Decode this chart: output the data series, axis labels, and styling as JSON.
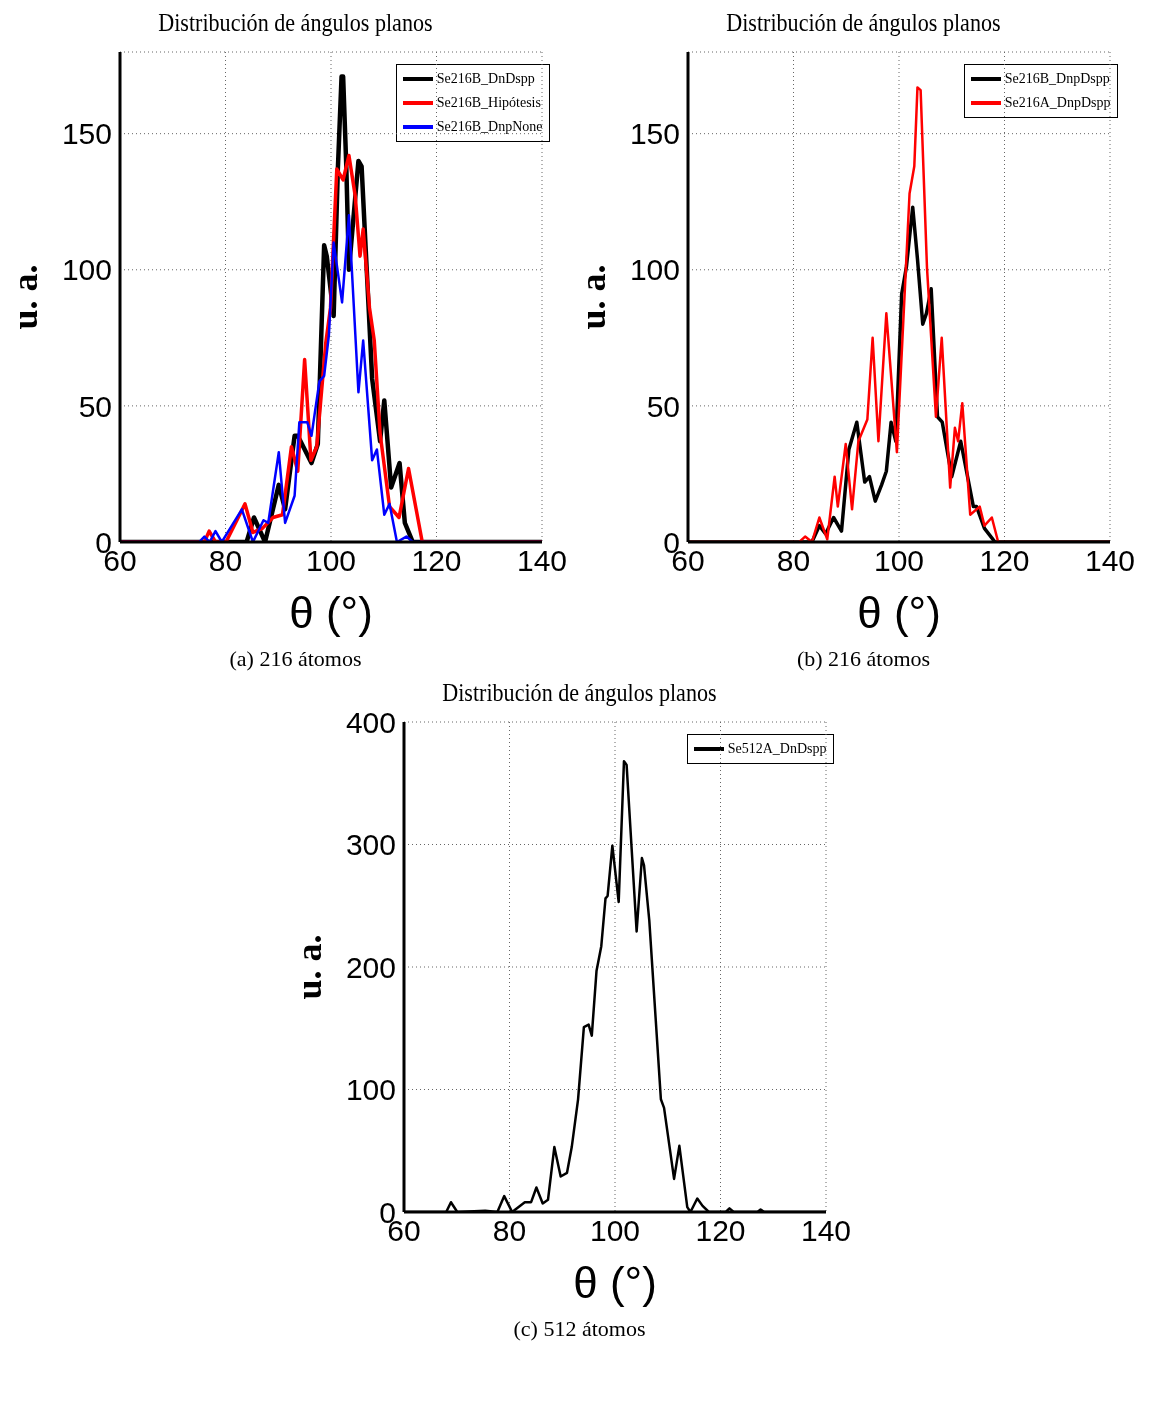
{
  "chart_data": [
    {
      "type": "line",
      "title": "Distribución de ángulos planos",
      "xlabel": "θ (°)",
      "ylabel": "u. a.",
      "xlim": [
        60,
        140
      ],
      "xticks": [
        60,
        80,
        100,
        120,
        140
      ],
      "ylim": [
        0,
        180
      ],
      "yticks": [
        0,
        50,
        100,
        150
      ],
      "grid": true,
      "legend": "top right",
      "marker": "none",
      "line_style": "solid",
      "annotations": [
        "(a) 216 átomos"
      ],
      "series": [
        {
          "name": "Se216B_DnDspp",
          "color": "#000000",
          "x": [
            60,
            84,
            85.4,
            87.5,
            90.1,
            91.3,
            93.1,
            93.7,
            96.3,
            97.5,
            98.7,
            99.2,
            100.5,
            101.3,
            102.0,
            102.3,
            102.9,
            103.4,
            105.2,
            105.8,
            107.8,
            109.3,
            110.1,
            111.4,
            113.0,
            114.0,
            115.5,
            140
          ],
          "values": [
            0,
            0,
            9,
            0,
            21,
            12,
            39,
            39,
            29,
            36,
            109,
            105,
            83,
            137,
            171,
            171,
            138,
            100,
            140,
            138,
            60,
            37,
            52,
            20,
            29,
            7,
            0,
            0
          ]
        },
        {
          "name": "Se216B_Hipótesis",
          "color": "#ff0000",
          "x": [
            60,
            76,
            76.9,
            78.1,
            80.1,
            83.7,
            85.2,
            87.0,
            89.0,
            90.8,
            92.5,
            93.7,
            95.0,
            96.2,
            97.3,
            99.0,
            99.9,
            101.1,
            102.3,
            103.4,
            104.6,
            105.5,
            106.1,
            107.3,
            108.2,
            109.3,
            111.1,
            112.9,
            114.7,
            117.3,
            140
          ],
          "values": [
            0,
            0,
            4,
            0,
            0,
            14,
            3.5,
            5,
            9,
            10,
            35,
            26,
            67,
            30,
            35,
            73,
            86,
            137,
            133,
            142,
            127,
            105,
            115,
            86,
            74,
            40,
            13,
            9,
            27,
            0,
            0
          ]
        },
        {
          "name": "Se216B_DnpNone",
          "color": "#0000ff",
          "x": [
            60,
            75,
            76.0,
            77.0,
            78.1,
            79.3,
            83.1,
            85.2,
            87.2,
            88.1,
            90.1,
            91.3,
            93.1,
            94.0,
            95.5,
            96.3,
            97.8,
            98.7,
            99.6,
            100.5,
            102.1,
            103.4,
            105.2,
            106.1,
            107.8,
            108.7,
            110.1,
            111.1,
            112.5,
            114.3,
            115.5,
            140
          ],
          "values": [
            0,
            0,
            2,
            0,
            4,
            0,
            12,
            0,
            8,
            7,
            33,
            7,
            17,
            44,
            44,
            39,
            59,
            61,
            76,
            110,
            88,
            120,
            55,
            74,
            30,
            34,
            10,
            14,
            0,
            2,
            0,
            0
          ]
        }
      ]
    },
    {
      "type": "line",
      "title": "Distribución de ángulos planos",
      "xlabel": "θ (°)",
      "ylabel": "u. a.",
      "xlim": [
        60,
        140
      ],
      "xticks": [
        60,
        80,
        100,
        120,
        140
      ],
      "ylim": [
        0,
        180
      ],
      "yticks": [
        0,
        50,
        100,
        150
      ],
      "grid": true,
      "legend": "top right",
      "marker": "none",
      "line_style": "solid",
      "annotations": [
        "(b) 216 átomos"
      ],
      "series": [
        {
          "name": "Se216B_DnpDspp",
          "color": "#000000",
          "x": [
            60,
            83.5,
            84.9,
            86.1,
            87.6,
            89.1,
            90.5,
            92.0,
            93.5,
            94.4,
            95.5,
            96.7,
            97.6,
            98.5,
            99.4,
            100.5,
            101.4,
            102.6,
            103.5,
            104.5,
            105.2,
            106.1,
            107.3,
            108.2,
            110.0,
            111.7,
            114.1,
            114.7,
            116.2,
            118.2,
            140
          ],
          "values": [
            0,
            0,
            6,
            3,
            9,
            4,
            34,
            44,
            22,
            24,
            15,
            21,
            26,
            44,
            37,
            91,
            101,
            123,
            104,
            80,
            84,
            93,
            46,
            44,
            24,
            37,
            13,
            13,
            5,
            0,
            0
          ]
        },
        {
          "name": "Se216A_DnpDspp",
          "color": "#ff0000",
          "x": [
            60,
            81.1,
            82.2,
            83.5,
            84.9,
            86.4,
            87.8,
            88.4,
            89.9,
            91.1,
            92.3,
            94.0,
            95.0,
            96.1,
            97.6,
            99.6,
            102.0,
            102.9,
            103.5,
            104.1,
            105.3,
            107.0,
            108.1,
            109.7,
            110.6,
            111.2,
            112.0,
            113.5,
            115.3,
            116.2,
            117.6,
            118.8,
            140
          ],
          "values": [
            0,
            0,
            2,
            0,
            9,
            1,
            24,
            13,
            36,
            12,
            37,
            45,
            75,
            37,
            84,
            33,
            128,
            138,
            167,
            166,
            101,
            46,
            75,
            20,
            42,
            37,
            51,
            10,
            13,
            6,
            9,
            0,
            0
          ]
        }
      ]
    },
    {
      "type": "line",
      "title": "Distribución de ángulos planos",
      "xlabel": "θ (°)",
      "ylabel": "u. a.",
      "xlim": [
        60,
        140
      ],
      "xticks": [
        60,
        80,
        100,
        120,
        140
      ],
      "ylim": [
        0,
        400
      ],
      "yticks": [
        0,
        100,
        200,
        300,
        400
      ],
      "grid": true,
      "legend": "top right",
      "marker": "none",
      "line_style": "solid",
      "annotations": [
        "(c) 512 átomos"
      ],
      "series": [
        {
          "name": "Se512A_DnDspp",
          "color": "#000000",
          "x": [
            60,
            68,
            68.9,
            70.1,
            75.4,
            77.7,
            79.0,
            80.5,
            82.9,
            84.1,
            85.1,
            86.3,
            87.3,
            88.5,
            89.7,
            90.9,
            91.8,
            93.0,
            94.1,
            95.0,
            95.6,
            96.5,
            97.4,
            98.2,
            98.6,
            99.5,
            100.7,
            101.7,
            102.2,
            104.1,
            105.1,
            105.5,
            106.5,
            108.7,
            109.3,
            111.2,
            112.2,
            113.7,
            114.3,
            115.6,
            116.6,
            117.8,
            121,
            121.7,
            122.5,
            127,
            127.6,
            128.3,
            140
          ],
          "values": [
            0,
            0,
            8,
            0,
            1,
            0,
            13,
            0,
            8,
            8,
            20,
            7,
            10,
            53,
            29,
            32,
            53,
            92,
            151,
            153,
            144,
            197,
            217,
            256,
            258,
            299,
            253,
            368,
            365,
            229,
            289,
            283,
            238,
            92,
            85,
            27,
            54,
            4,
            0,
            11,
            5,
            0,
            0,
            3,
            0,
            0,
            2,
            0,
            0
          ]
        }
      ]
    }
  ]
}
